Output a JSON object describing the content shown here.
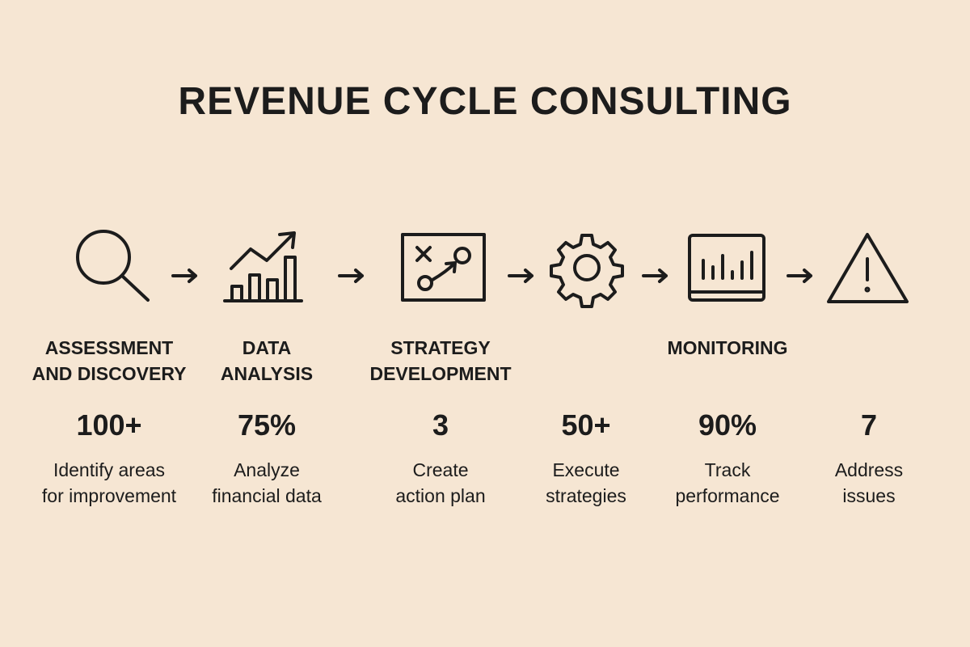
{
  "title": "REVENUE CYCLE CONSULTING",
  "steps": [
    {
      "label": [
        "ASSESSMENT",
        "AND DISCOVERY"
      ],
      "stat": "100+",
      "description": [
        "Identify areas",
        "for improvement"
      ]
    },
    {
      "label": [
        "DATA",
        "ANALYSIS"
      ],
      "stat": "75%",
      "description": [
        "Analyze",
        "financial data"
      ]
    },
    {
      "label": [
        "STRATEGY",
        "DEVELOPMENT"
      ],
      "stat": "3",
      "description": [
        "Create",
        "action plan"
      ]
    },
    {
      "stat": "50+",
      "description": [
        "Execute",
        "strategies"
      ]
    },
    {
      "label": [
        "MONITORING"
      ],
      "stat": "90%",
      "description": [
        "Track",
        "performance"
      ]
    },
    {
      "stat": "7",
      "description": [
        "Address",
        "issues"
      ]
    }
  ]
}
